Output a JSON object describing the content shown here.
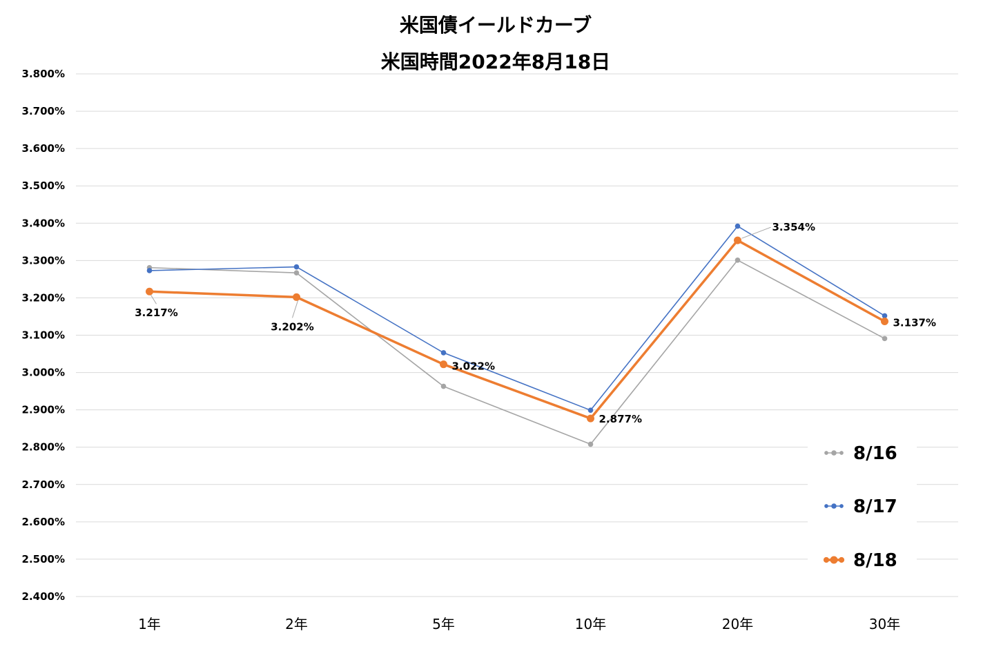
{
  "chart_data": {
    "type": "line",
    "title": "米国債イールドカーブ",
    "subtitle": "米国時間2022年8月18日",
    "categories": [
      "1年",
      "2年",
      "5年",
      "10年",
      "20年",
      "30年"
    ],
    "ylim": [
      2.4,
      3.8
    ],
    "yticks": [
      "2.400%",
      "2.500%",
      "2.600%",
      "2.700%",
      "2.800%",
      "2.900%",
      "3.000%",
      "3.100%",
      "3.200%",
      "3.300%",
      "3.400%",
      "3.500%",
      "3.600%",
      "3.700%",
      "3.800%"
    ],
    "grid": true,
    "legend_position": "right",
    "series": [
      {
        "name": "8/16",
        "color": "#a5a5a5",
        "values": [
          3.281,
          3.267,
          2.963,
          2.808,
          3.301,
          3.091
        ]
      },
      {
        "name": "8/17",
        "color": "#4472c4",
        "values": [
          3.273,
          3.283,
          3.053,
          2.899,
          3.392,
          3.152
        ]
      },
      {
        "name": "8/18",
        "color": "#ed7d31",
        "values": [
          3.217,
          3.202,
          3.022,
          2.877,
          3.354,
          3.137
        ]
      }
    ],
    "data_labels": {
      "series": "8/18",
      "labels": [
        "3.217%",
        "3.202%",
        "3.022%",
        "2.877%",
        "3.354%",
        "3.137%"
      ]
    }
  }
}
